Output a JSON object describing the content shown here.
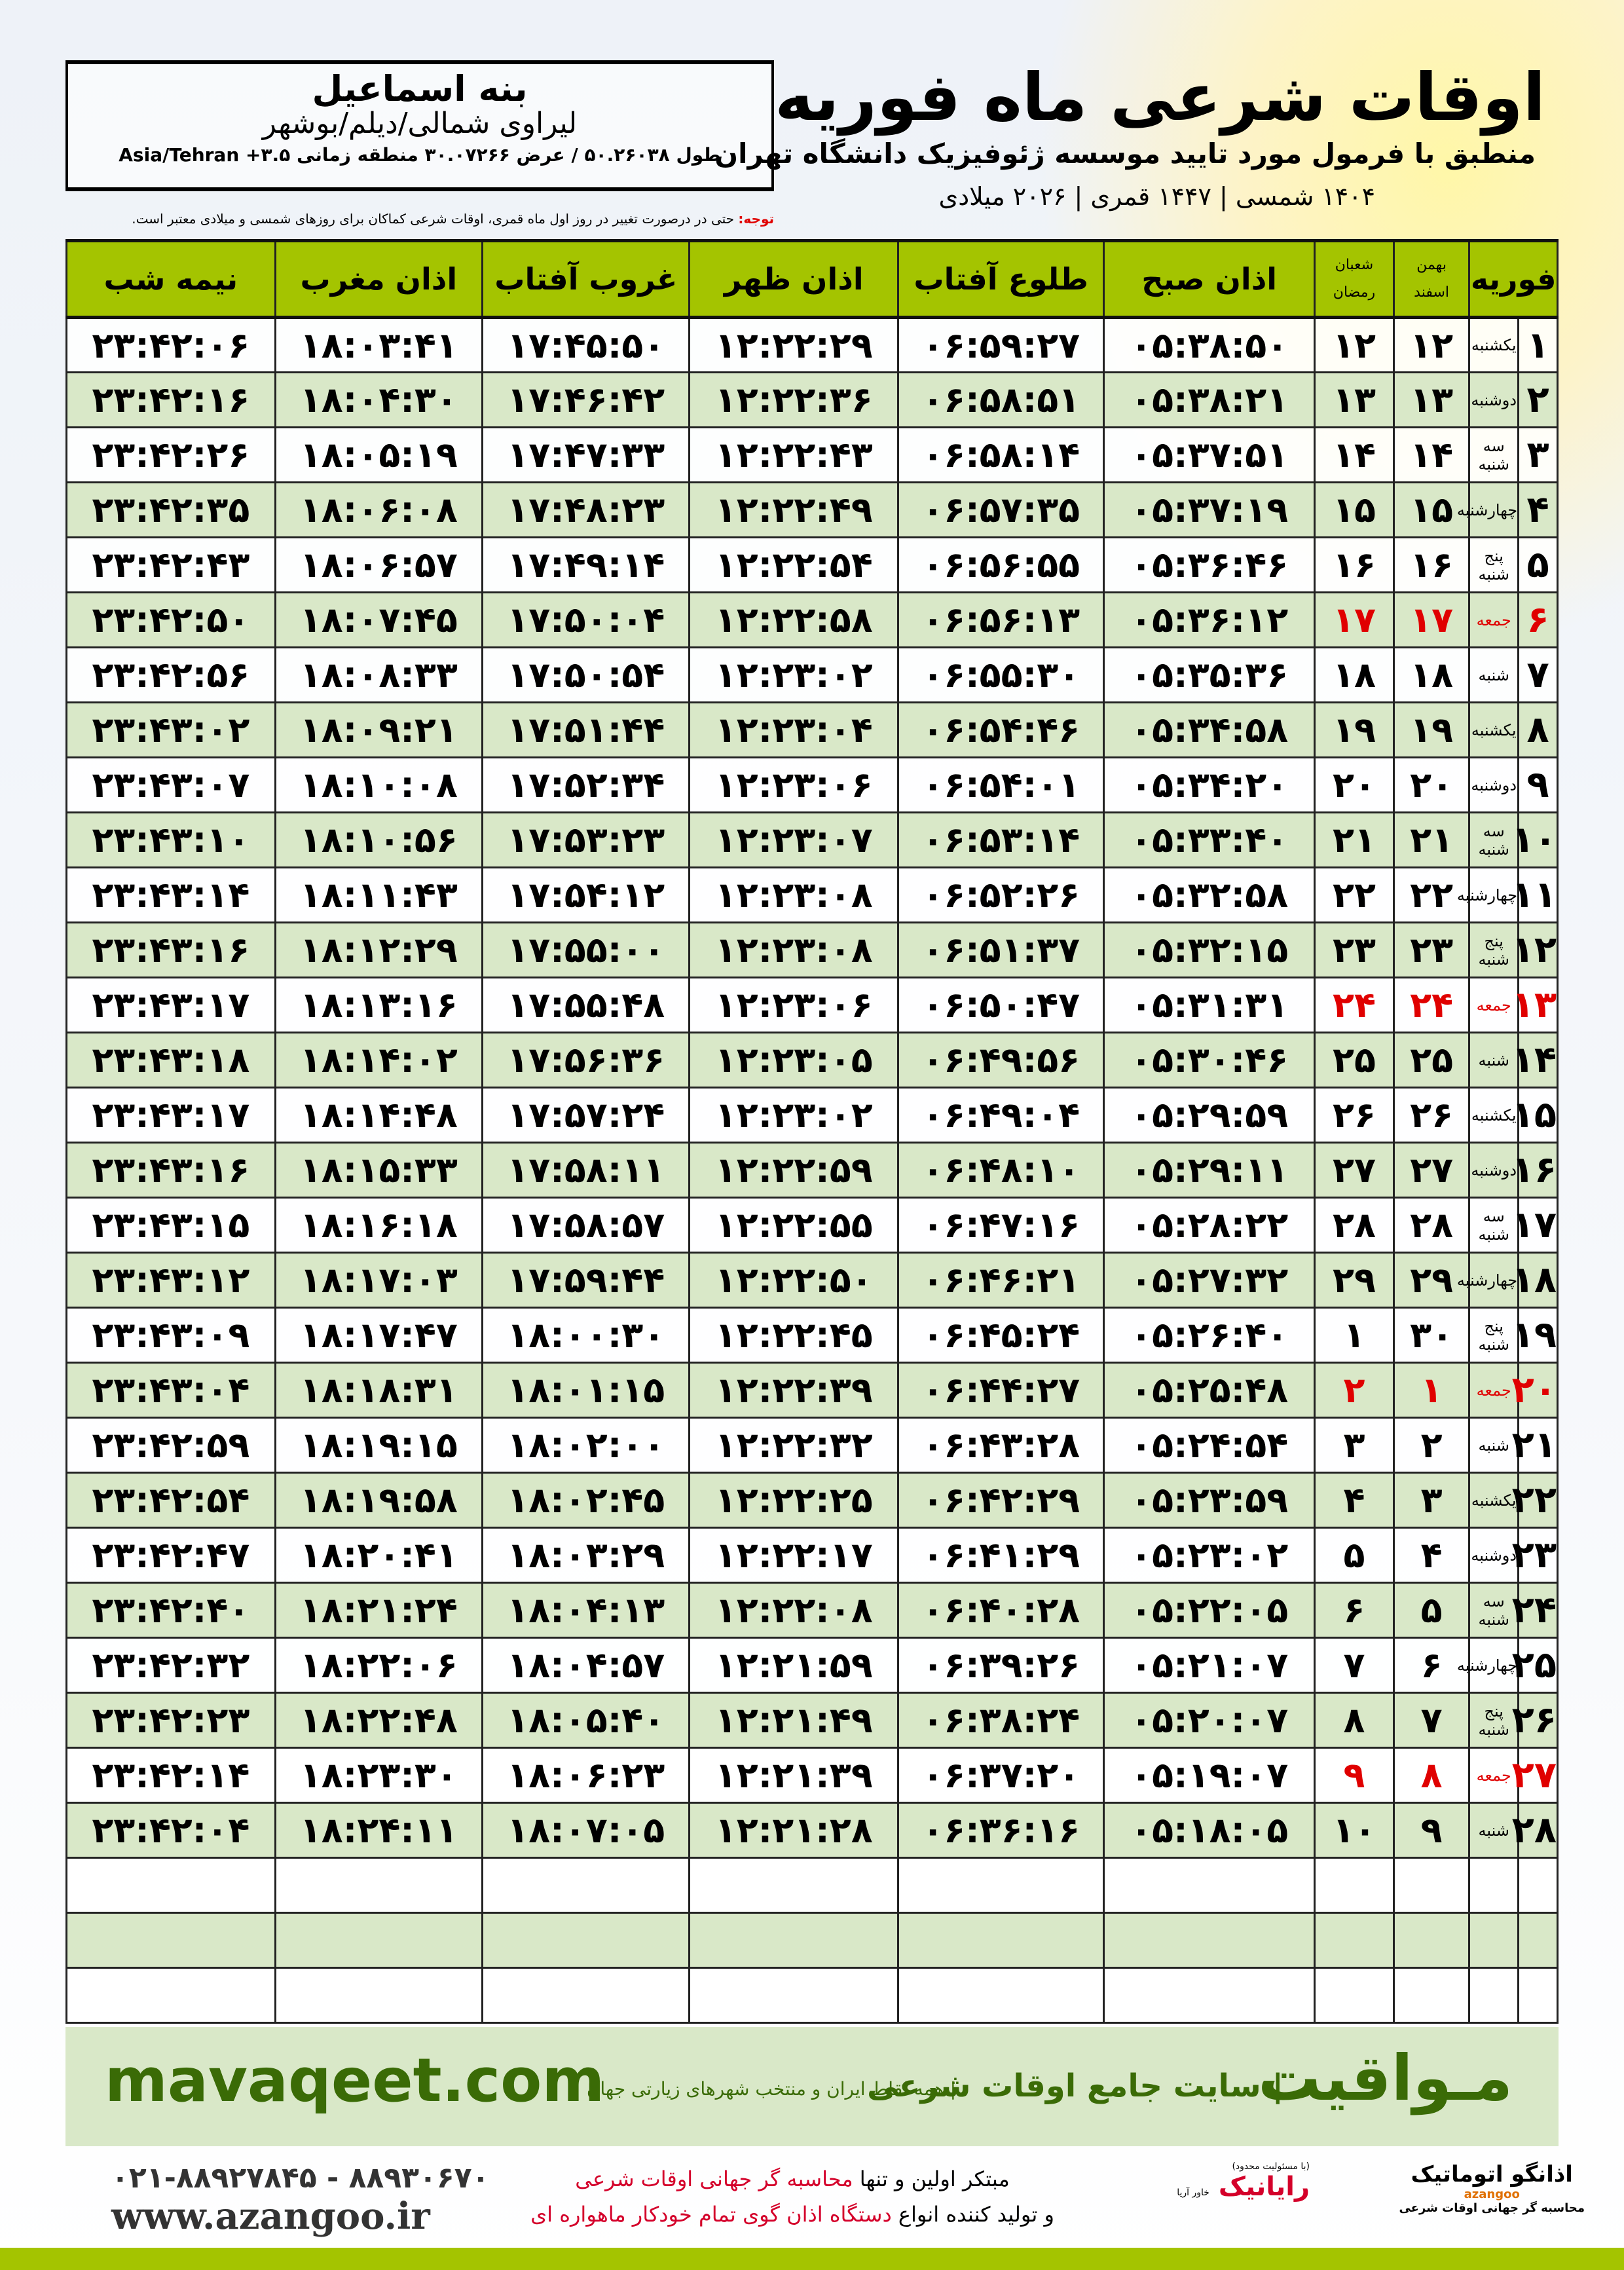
{
  "location": {
    "name": "بنه اسماعیل",
    "region": "لیراوی شمالی/دیلم/بوشهر",
    "coords": "طول ۵۰.۲۶۰۳۸ / عرض ۳۰.۰۷۲۶۶ منطقه زمانی Asia/Tehran +۳.۵"
  },
  "header": {
    "title": "اوقات شرعی ماه فوریه",
    "subtitle": "منطبق با فرمول مورد تایید موسسه ژئوفیزیک دانشگاه تهران",
    "years": "۱۴۰۴ شمسی | ۱۴۴۷ قمری | ۲۰۲۶ میلادی"
  },
  "note": {
    "label": "توجه:",
    "text": " حتی در درصورت تغییر در روز اول ماه قمری، اوقات شرعی کماکان برای روزهای شمسی و میلادی معتبر است."
  },
  "table": {
    "headers": {
      "month": "فوریه",
      "shamsi_top": "بهمن",
      "shamsi_bottom": "اسفند",
      "qamari_top": "شعبان",
      "qamari_bottom": "رمضان",
      "fajr": "اذان صبح",
      "sunrise": "طلوع آفتاب",
      "dhuhr": "اذان ظهر",
      "sunset": "غروب آفتاب",
      "maghrib": "اذان مغرب",
      "midnight": "نیمه شب"
    },
    "rows": [
      [
        "۱",
        "یکشنبه",
        "۱۲",
        "۱۲",
        "۰۵:۳۸:۵۰",
        "۰۶:۵۹:۲۷",
        "۱۲:۲۲:۲۹",
        "۱۷:۴۵:۵۰",
        "۱۸:۰۳:۴۱",
        "۲۳:۴۲:۰۶",
        false
      ],
      [
        "۲",
        "دوشنبه",
        "۱۳",
        "۱۳",
        "۰۵:۳۸:۲۱",
        "۰۶:۵۸:۵۱",
        "۱۲:۲۲:۳۶",
        "۱۷:۴۶:۴۲",
        "۱۸:۰۴:۳۰",
        "۲۳:۴۲:۱۶",
        false
      ],
      [
        "۳",
        "سه شنبه",
        "۱۴",
        "۱۴",
        "۰۵:۳۷:۵۱",
        "۰۶:۵۸:۱۴",
        "۱۲:۲۲:۴۳",
        "۱۷:۴۷:۳۳",
        "۱۸:۰۵:۱۹",
        "۲۳:۴۲:۲۶",
        false
      ],
      [
        "۴",
        "چهارشنبه",
        "۱۵",
        "۱۵",
        "۰۵:۳۷:۱۹",
        "۰۶:۵۷:۳۵",
        "۱۲:۲۲:۴۹",
        "۱۷:۴۸:۲۳",
        "۱۸:۰۶:۰۸",
        "۲۳:۴۲:۳۵",
        false
      ],
      [
        "۵",
        "پنج شنبه",
        "۱۶",
        "۱۶",
        "۰۵:۳۶:۴۶",
        "۰۶:۵۶:۵۵",
        "۱۲:۲۲:۵۴",
        "۱۷:۴۹:۱۴",
        "۱۸:۰۶:۵۷",
        "۲۳:۴۲:۴۳",
        false
      ],
      [
        "۶",
        "جمعه",
        "۱۷",
        "۱۷",
        "۰۵:۳۶:۱۲",
        "۰۶:۵۶:۱۳",
        "۱۲:۲۲:۵۸",
        "۱۷:۵۰:۰۴",
        "۱۸:۰۷:۴۵",
        "۲۳:۴۲:۵۰",
        true
      ],
      [
        "۷",
        "شنبه",
        "۱۸",
        "۱۸",
        "۰۵:۳۵:۳۶",
        "۰۶:۵۵:۳۰",
        "۱۲:۲۳:۰۲",
        "۱۷:۵۰:۵۴",
        "۱۸:۰۸:۳۳",
        "۲۳:۴۲:۵۶",
        false
      ],
      [
        "۸",
        "یکشنبه",
        "۱۹",
        "۱۹",
        "۰۵:۳۴:۵۸",
        "۰۶:۵۴:۴۶",
        "۱۲:۲۳:۰۴",
        "۱۷:۵۱:۴۴",
        "۱۸:۰۹:۲۱",
        "۲۳:۴۳:۰۲",
        false
      ],
      [
        "۹",
        "دوشنبه",
        "۲۰",
        "۲۰",
        "۰۵:۳۴:۲۰",
        "۰۶:۵۴:۰۱",
        "۱۲:۲۳:۰۶",
        "۱۷:۵۲:۳۴",
        "۱۸:۱۰:۰۸",
        "۲۳:۴۳:۰۷",
        false
      ],
      [
        "۱۰",
        "سه شنبه",
        "۲۱",
        "۲۱",
        "۰۵:۳۳:۴۰",
        "۰۶:۵۳:۱۴",
        "۱۲:۲۳:۰۷",
        "۱۷:۵۳:۲۳",
        "۱۸:۱۰:۵۶",
        "۲۳:۴۳:۱۰",
        false
      ],
      [
        "۱۱",
        "چهارشنبه",
        "۲۲",
        "۲۲",
        "۰۵:۳۲:۵۸",
        "۰۶:۵۲:۲۶",
        "۱۲:۲۳:۰۸",
        "۱۷:۵۴:۱۲",
        "۱۸:۱۱:۴۳",
        "۲۳:۴۳:۱۴",
        false
      ],
      [
        "۱۲",
        "پنج شنبه",
        "۲۳",
        "۲۳",
        "۰۵:۳۲:۱۵",
        "۰۶:۵۱:۳۷",
        "۱۲:۲۳:۰۸",
        "۱۷:۵۵:۰۰",
        "۱۸:۱۲:۲۹",
        "۲۳:۴۳:۱۶",
        false
      ],
      [
        "۱۳",
        "جمعه",
        "۲۴",
        "۲۴",
        "۰۵:۳۱:۳۱",
        "۰۶:۵۰:۴۷",
        "۱۲:۲۳:۰۶",
        "۱۷:۵۵:۴۸",
        "۱۸:۱۳:۱۶",
        "۲۳:۴۳:۱۷",
        true
      ],
      [
        "۱۴",
        "شنبه",
        "۲۵",
        "۲۵",
        "۰۵:۳۰:۴۶",
        "۰۶:۴۹:۵۶",
        "۱۲:۲۳:۰۵",
        "۱۷:۵۶:۳۶",
        "۱۸:۱۴:۰۲",
        "۲۳:۴۳:۱۸",
        false
      ],
      [
        "۱۵",
        "یکشنبه",
        "۲۶",
        "۲۶",
        "۰۵:۲۹:۵۹",
        "۰۶:۴۹:۰۴",
        "۱۲:۲۳:۰۲",
        "۱۷:۵۷:۲۴",
        "۱۸:۱۴:۴۸",
        "۲۳:۴۳:۱۷",
        false
      ],
      [
        "۱۶",
        "دوشنبه",
        "۲۷",
        "۲۷",
        "۰۵:۲۹:۱۱",
        "۰۶:۴۸:۱۰",
        "۱۲:۲۲:۵۹",
        "۱۷:۵۸:۱۱",
        "۱۸:۱۵:۳۳",
        "۲۳:۴۳:۱۶",
        false
      ],
      [
        "۱۷",
        "سه شنبه",
        "۲۸",
        "۲۸",
        "۰۵:۲۸:۲۲",
        "۰۶:۴۷:۱۶",
        "۱۲:۲۲:۵۵",
        "۱۷:۵۸:۵۷",
        "۱۸:۱۶:۱۸",
        "۲۳:۴۳:۱۵",
        false
      ],
      [
        "۱۸",
        "چهارشنبه",
        "۲۹",
        "۲۹",
        "۰۵:۲۷:۳۲",
        "۰۶:۴۶:۲۱",
        "۱۲:۲۲:۵۰",
        "۱۷:۵۹:۴۴",
        "۱۸:۱۷:۰۳",
        "۲۳:۴۳:۱۲",
        false
      ],
      [
        "۱۹",
        "پنج شنبه",
        "۳۰",
        "۱",
        "۰۵:۲۶:۴۰",
        "۰۶:۴۵:۲۴",
        "۱۲:۲۲:۴۵",
        "۱۸:۰۰:۳۰",
        "۱۸:۱۷:۴۷",
        "۲۳:۴۳:۰۹",
        false
      ],
      [
        "۲۰",
        "جمعه",
        "۱",
        "۲",
        "۰۵:۲۵:۴۸",
        "۰۶:۴۴:۲۷",
        "۱۲:۲۲:۳۹",
        "۱۸:۰۱:۱۵",
        "۱۸:۱۸:۳۱",
        "۲۳:۴۳:۰۴",
        true
      ],
      [
        "۲۱",
        "شنبه",
        "۲",
        "۳",
        "۰۵:۲۴:۵۴",
        "۰۶:۴۳:۲۸",
        "۱۲:۲۲:۳۲",
        "۱۸:۰۲:۰۰",
        "۱۸:۱۹:۱۵",
        "۲۳:۴۲:۵۹",
        false
      ],
      [
        "۲۲",
        "یکشنبه",
        "۳",
        "۴",
        "۰۵:۲۳:۵۹",
        "۰۶:۴۲:۲۹",
        "۱۲:۲۲:۲۵",
        "۱۸:۰۲:۴۵",
        "۱۸:۱۹:۵۸",
        "۲۳:۴۲:۵۴",
        false
      ],
      [
        "۲۳",
        "دوشنبه",
        "۴",
        "۵",
        "۰۵:۲۳:۰۲",
        "۰۶:۴۱:۲۹",
        "۱۲:۲۲:۱۷",
        "۱۸:۰۳:۲۹",
        "۱۸:۲۰:۴۱",
        "۲۳:۴۲:۴۷",
        false
      ],
      [
        "۲۴",
        "سه شنبه",
        "۵",
        "۶",
        "۰۵:۲۲:۰۵",
        "۰۶:۴۰:۲۸",
        "۱۲:۲۲:۰۸",
        "۱۸:۰۴:۱۳",
        "۱۸:۲۱:۲۴",
        "۲۳:۴۲:۴۰",
        false
      ],
      [
        "۲۵",
        "چهارشنبه",
        "۶",
        "۷",
        "۰۵:۲۱:۰۷",
        "۰۶:۳۹:۲۶",
        "۱۲:۲۱:۵۹",
        "۱۸:۰۴:۵۷",
        "۱۸:۲۲:۰۶",
        "۲۳:۴۲:۳۲",
        false
      ],
      [
        "۲۶",
        "پنج شنبه",
        "۷",
        "۸",
        "۰۵:۲۰:۰۷",
        "۰۶:۳۸:۲۴",
        "۱۲:۲۱:۴۹",
        "۱۸:۰۵:۴۰",
        "۱۸:۲۲:۴۸",
        "۲۳:۴۲:۲۳",
        false
      ],
      [
        "۲۷",
        "جمعه",
        "۸",
        "۹",
        "۰۵:۱۹:۰۷",
        "۰۶:۳۷:۲۰",
        "۱۲:۲۱:۳۹",
        "۱۸:۰۶:۲۳",
        "۱۸:۲۳:۳۰",
        "۲۳:۴۲:۱۴",
        true
      ],
      [
        "۲۸",
        "شنبه",
        "۹",
        "۱۰",
        "۰۵:۱۸:۰۵",
        "۰۶:۳۶:۱۶",
        "۱۲:۲۱:۲۸",
        "۱۸:۰۷:۰۵",
        "۱۸:۲۴:۱۱",
        "۲۳:۴۲:۰۴",
        false
      ]
    ],
    "empty_rows": 3,
    "holiday_color": "#e00000"
  },
  "band": {
    "brand": "مـواقیت",
    "slogan": "| سایت جامع اوقات شرعی",
    "sub": "| همه نقاط ایران و منتخب شهرهای زیارتی جهان",
    "url": "mavaqeet.com"
  },
  "footer": {
    "logo1": {
      "name": "اذانگو اتوماتیک",
      "en": "azangoo",
      "caption": "محاسبه گر جهانی اوقات شرعی"
    },
    "logo2": {
      "name": "رایانیک",
      "side": "خاور آریا",
      "tag": "(با مسئولیت محدود)"
    },
    "line1_a": "مبتکر اولین و تنها ",
    "line1_b": "محاسبه گر جهانی اوقات شرعی",
    "line2_a": "و تولید کننده انواع ",
    "line2_b": "دستگاه اذان گوی تمام خودکار ماهواره ای",
    "phone": "۰۲۱-۸۸۹۲۷۸۴۵ - ۸۸۹۳۰۶۷۰",
    "website": "www.azangoo.ir"
  }
}
